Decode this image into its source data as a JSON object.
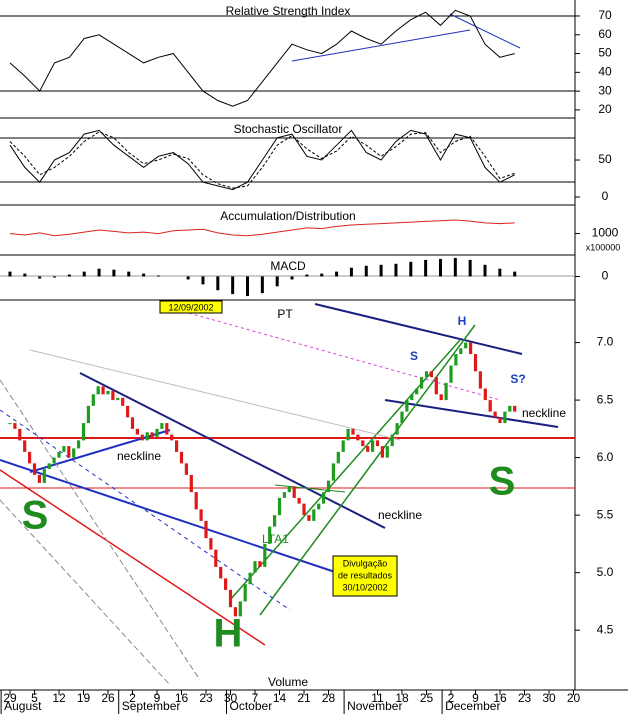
{
  "chart_data": [
    {
      "type": "line",
      "title": "Relative Strength Index",
      "ylim": [
        15.7,
        78.5
      ],
      "yticks": [
        20,
        30,
        40,
        50,
        60,
        70
      ],
      "series": [
        {
          "color": "#000000",
          "values": [
            45,
            38,
            30,
            45,
            48,
            58,
            60,
            55,
            50,
            45,
            48,
            50,
            40,
            30,
            25,
            22,
            25,
            35,
            45,
            55,
            52,
            50,
            55,
            62,
            58,
            55,
            62,
            68,
            72,
            65,
            73,
            70,
            55,
            48,
            50
          ]
        }
      ]
    },
    {
      "type": "line",
      "title": "Stochastic Oscillator",
      "ylim": [
        -10.8,
        106.8
      ],
      "yticks": [
        0,
        50
      ],
      "series": [
        {
          "color": "#000000",
          "values": [
            70,
            40,
            20,
            50,
            60,
            85,
            90,
            70,
            55,
            40,
            55,
            60,
            45,
            20,
            15,
            10,
            20,
            50,
            80,
            85,
            55,
            50,
            70,
            90,
            60,
            50,
            75,
            90,
            85,
            50,
            85,
            80,
            40,
            20,
            30
          ]
        },
        {
          "color": "#000000",
          "dash": true,
          "values": [
            75,
            55,
            30,
            40,
            55,
            75,
            88,
            80,
            60,
            45,
            50,
            58,
            52,
            30,
            18,
            12,
            15,
            40,
            70,
            83,
            65,
            52,
            62,
            82,
            70,
            55,
            68,
            85,
            87,
            60,
            75,
            82,
            55,
            25,
            32
          ]
        }
      ]
    },
    {
      "type": "line",
      "title": "Accumulation/Distribution",
      "ylim": [
        700,
        1400
      ],
      "yticks": [
        1000
      ],
      "y_label": "x100000",
      "series": [
        {
          "color": "#e02020",
          "values": [
            1000,
            980,
            1010,
            970,
            990,
            1020,
            1050,
            1030,
            1010,
            1020,
            1000,
            1040,
            1050,
            1060,
            1010,
            980,
            970,
            990,
            1020,
            1050,
            1080,
            1070,
            1100,
            1120,
            1130,
            1140,
            1150,
            1160,
            1170,
            1180,
            1190,
            1175,
            1150,
            1140,
            1150
          ]
        }
      ]
    },
    {
      "type": "bar",
      "title": "MACD",
      "ylim": [
        -0.24,
        0.22
      ],
      "yticks": [
        0
      ],
      "color": "#000000",
      "values": [
        0.05,
        0.03,
        -0.02,
        -0.01,
        0.02,
        0.05,
        0.08,
        0.07,
        0.05,
        0.03,
        0.01,
        0,
        -0.03,
        -0.08,
        -0.14,
        -0.18,
        -0.2,
        -0.17,
        -0.1,
        -0.03,
        0.02,
        0.03,
        0.05,
        0.09,
        0.11,
        0.12,
        0.13,
        0.15,
        0.17,
        0.18,
        0.19,
        0.17,
        0.12,
        0.08,
        0.05
      ]
    },
    {
      "type": "candlestick",
      "up_color": "#1e9c1e",
      "down_color": "#e01818",
      "ylim": [
        3.98,
        7.37
      ],
      "yticks": [
        {
          "value": 4.5,
          "label": "4.5"
        },
        {
          "value": 5,
          "label": "5.0"
        },
        {
          "value": 5.5,
          "label": "5.5"
        },
        {
          "value": 6,
          "label": "6.0"
        },
        {
          "value": 6.5,
          "label": "6.5"
        },
        {
          "value": 7,
          "label": "7.0"
        }
      ],
      "values": [
        6.3,
        6.25,
        6.15,
        6.05,
        5.95,
        5.85,
        5.78,
        5.9,
        5.95,
        6.0,
        6.05,
        6.1,
        6.0,
        6.08,
        6.15,
        6.3,
        6.45,
        6.55,
        6.62,
        6.55,
        6.58,
        6.5,
        6.52,
        6.45,
        6.35,
        6.25,
        6.2,
        6.15,
        6.22,
        6.18,
        6.25,
        6.3,
        6.2,
        6.15,
        6.05,
        5.95,
        5.85,
        5.7,
        5.55,
        5.45,
        5.3,
        5.2,
        5.05,
        4.95,
        4.85,
        4.7,
        4.62,
        4.75,
        4.9,
        5.0,
        5.1,
        5.05,
        5.25,
        5.4,
        5.5,
        5.65,
        5.7,
        5.75,
        5.65,
        5.6,
        5.5,
        5.45,
        5.55,
        5.6,
        5.7,
        5.8,
        5.95,
        6.05,
        6.15,
        6.25,
        6.2,
        6.15,
        6.1,
        6.05,
        6.15,
        6.1,
        6.0,
        6.1,
        6.2,
        6.3,
        6.4,
        6.5,
        6.55,
        6.6,
        6.7,
        6.75,
        6.7,
        6.55,
        6.5,
        6.65,
        6.8,
        6.9,
        6.95,
        7.0,
        6.9,
        6.75,
        6.6,
        6.5,
        6.4,
        6.35,
        6.3,
        6.4,
        6.45,
        6.4
      ],
      "xticks": [
        {
          "value": 0,
          "label": "29"
        },
        {
          "value": 5,
          "label": "5"
        },
        {
          "value": 10,
          "label": "12"
        },
        {
          "value": 15,
          "label": "19"
        },
        {
          "value": 20,
          "label": "26"
        },
        {
          "value": 25,
          "label": "2"
        },
        {
          "value": 30,
          "label": "9"
        },
        {
          "value": 35,
          "label": "16"
        },
        {
          "value": 40,
          "label": "23"
        },
        {
          "value": 45,
          "label": "30"
        },
        {
          "value": 50,
          "label": "7"
        },
        {
          "value": 55,
          "label": "14"
        },
        {
          "value": 60,
          "label": "21"
        },
        {
          "value": 65,
          "label": "28"
        },
        {
          "value": 75,
          "label": "11"
        },
        {
          "value": 80,
          "label": "18"
        },
        {
          "value": 85,
          "label": "25"
        },
        {
          "value": 90,
          "label": "2"
        },
        {
          "value": 95,
          "label": "9"
        },
        {
          "value": 100,
          "label": "16"
        },
        {
          "value": 105,
          "label": "23"
        },
        {
          "value": 110,
          "label": "30"
        },
        {
          "value": 115,
          "label": "20"
        }
      ],
      "months": [
        {
          "value": -1,
          "label": "August"
        },
        {
          "value": 23,
          "label": "September"
        },
        {
          "value": 45,
          "label": "October"
        },
        {
          "value": 69,
          "label": "November"
        },
        {
          "value": 89,
          "label": "December"
        }
      ],
      "annotations": [
        "12/09/2002",
        "PT",
        "H",
        "S",
        "S?",
        "neckline",
        "neckline",
        "neckline",
        "S",
        "S",
        "H",
        "LTA1",
        "Divulgação",
        "de resultados",
        "30/10/2002",
        "Volume"
      ]
    }
  ]
}
